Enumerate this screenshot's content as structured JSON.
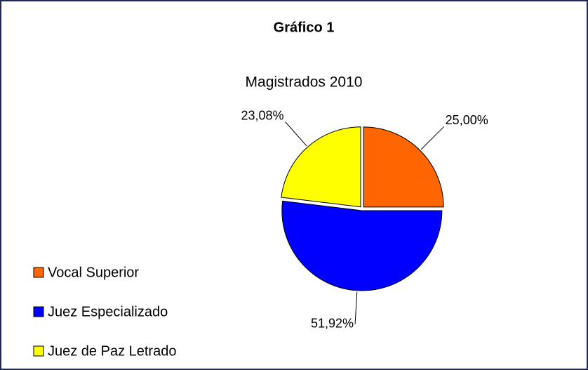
{
  "chart_data": {
    "type": "pie",
    "title": "Gráfico 1",
    "subtitle": "Magistrados 2010",
    "categories": [
      "Vocal Superior",
      "Juez Especializado",
      "Juez de Paz Letrado"
    ],
    "values": [
      25.0,
      51.92,
      23.08
    ],
    "value_labels": [
      "25,00%",
      "51,92%",
      "23,08%"
    ],
    "colors": [
      "#ff6600",
      "#0000ff",
      "#ffff00"
    ],
    "legend": "bottom-left"
  }
}
